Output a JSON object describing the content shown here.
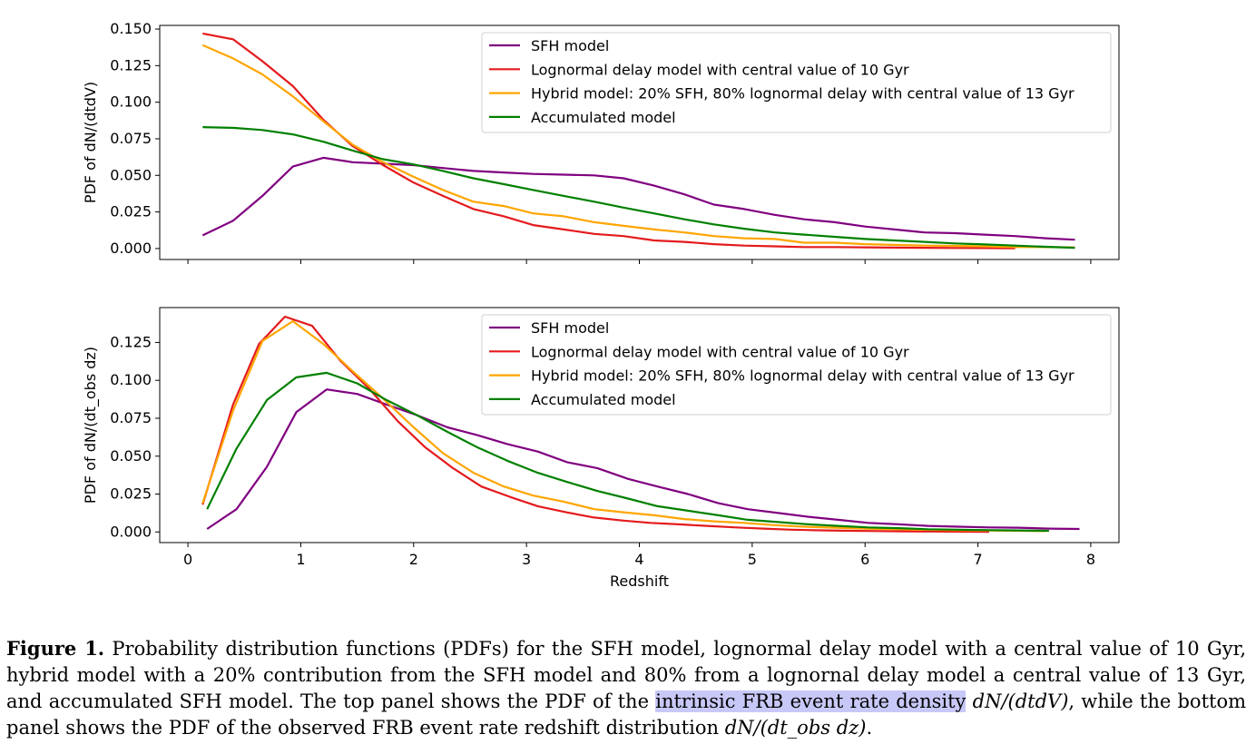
{
  "chart_data": [
    {
      "type": "line",
      "xlabel": "",
      "ylabel": "PDF of dN/(dtdV)",
      "xlim": [
        -0.25,
        8.25
      ],
      "ylim": [
        -0.0075,
        0.1525
      ],
      "xticks": [
        "0",
        "1",
        "2",
        "3",
        "4",
        "5",
        "6",
        "7",
        "8"
      ],
      "show_xtick_labels": false,
      "yticks": [
        "0.000",
        "0.025",
        "0.050",
        "0.075",
        "0.100",
        "0.125",
        "0.150"
      ],
      "legend": "top-right",
      "grid": false,
      "series": [
        {
          "name": "SFH model",
          "color": "#800080",
          "x": [
            0.13,
            0.4,
            0.66,
            0.93,
            1.2,
            1.46,
            1.73,
            2.0,
            2.26,
            2.53,
            2.8,
            3.06,
            3.33,
            3.6,
            3.86,
            4.13,
            4.4,
            4.66,
            4.93,
            5.2,
            5.46,
            5.73,
            6.0,
            6.26,
            6.53,
            6.8,
            7.06,
            7.33,
            7.6,
            7.86
          ],
          "y": [
            0.009,
            0.019,
            0.036,
            0.056,
            0.062,
            0.059,
            0.058,
            0.057,
            0.055,
            0.053,
            0.052,
            0.051,
            0.0505,
            0.05,
            0.048,
            0.043,
            0.037,
            0.03,
            0.027,
            0.023,
            0.02,
            0.018,
            0.015,
            0.013,
            0.011,
            0.0105,
            0.0095,
            0.0085,
            0.007,
            0.006
          ]
        },
        {
          "name": "Lognormal delay model with central value of 10 Gyr",
          "color": "#e41a1c",
          "x": [
            0.13,
            0.4,
            0.66,
            0.93,
            1.2,
            1.46,
            1.73,
            2.0,
            2.26,
            2.53,
            2.8,
            3.06,
            3.33,
            3.6,
            3.86,
            4.13,
            4.4,
            4.66,
            4.93,
            5.2,
            5.46,
            5.73,
            6.0,
            6.26,
            6.53,
            6.8,
            7.06,
            7.33
          ],
          "y": [
            0.147,
            0.143,
            0.128,
            0.111,
            0.088,
            0.07,
            0.057,
            0.045,
            0.036,
            0.027,
            0.022,
            0.016,
            0.013,
            0.01,
            0.0085,
            0.0055,
            0.0045,
            0.003,
            0.002,
            0.0015,
            0.001,
            0.001,
            0.0008,
            0.0006,
            0.0005,
            0.0004,
            0.0003,
            0.0002
          ]
        },
        {
          "name": "Hybrid model: 20% SFH, 80% lognormal delay with central value of 13 Gyr",
          "color": "#ffa500",
          "x": [
            0.13,
            0.4,
            0.66,
            0.93,
            1.2,
            1.46,
            1.73,
            2.0,
            2.26,
            2.53,
            2.8,
            3.06,
            3.33,
            3.6,
            3.86,
            4.13,
            4.4,
            4.66,
            4.93,
            5.2,
            5.46,
            5.73,
            6.0,
            6.26,
            6.53,
            6.8,
            7.06,
            7.33,
            7.6,
            7.86
          ],
          "y": [
            0.139,
            0.13,
            0.119,
            0.104,
            0.087,
            0.071,
            0.059,
            0.049,
            0.04,
            0.032,
            0.029,
            0.024,
            0.022,
            0.018,
            0.0155,
            0.013,
            0.011,
            0.0085,
            0.007,
            0.0065,
            0.004,
            0.004,
            0.003,
            0.0025,
            0.002,
            0.0018,
            0.0015,
            0.001,
            0.001,
            0.0008
          ]
        },
        {
          "name": "Accumulated model",
          "color": "#008000",
          "x": [
            0.13,
            0.4,
            0.66,
            0.93,
            1.2,
            1.46,
            1.73,
            2.0,
            2.26,
            2.53,
            2.8,
            3.06,
            3.33,
            3.6,
            3.86,
            4.13,
            4.4,
            4.66,
            4.93,
            5.2,
            5.46,
            5.73,
            6.0,
            6.26,
            6.53,
            6.8,
            7.06,
            7.33,
            7.6,
            7.86
          ],
          "y": [
            0.083,
            0.0825,
            0.081,
            0.078,
            0.073,
            0.067,
            0.061,
            0.0575,
            0.053,
            0.048,
            0.044,
            0.04,
            0.036,
            0.032,
            0.028,
            0.024,
            0.02,
            0.0165,
            0.0135,
            0.011,
            0.0095,
            0.008,
            0.0065,
            0.0055,
            0.0045,
            0.0035,
            0.0028,
            0.002,
            0.0012,
            0.0005
          ]
        }
      ]
    },
    {
      "type": "line",
      "xlabel": "Redshift",
      "ylabel": "PDF of dN/(dt_obs dz)",
      "xlim": [
        -0.25,
        8.25
      ],
      "ylim": [
        -0.007,
        0.148
      ],
      "xticks": [
        "0",
        "1",
        "2",
        "3",
        "4",
        "5",
        "6",
        "7",
        "8"
      ],
      "show_xtick_labels": true,
      "yticks": [
        "0.000",
        "0.025",
        "0.050",
        "0.075",
        "0.100",
        "0.125"
      ],
      "legend": "top-right",
      "grid": false,
      "series": [
        {
          "name": "SFH model",
          "color": "#800080",
          "x": [
            0.17,
            0.43,
            0.7,
            0.96,
            1.23,
            1.5,
            1.76,
            2.03,
            2.3,
            2.56,
            2.83,
            3.1,
            3.36,
            3.63,
            3.9,
            4.16,
            4.43,
            4.7,
            4.96,
            5.23,
            5.5,
            5.76,
            6.03,
            6.3,
            6.56,
            6.83,
            7.1,
            7.36,
            7.63,
            7.9
          ],
          "y": [
            0.002,
            0.015,
            0.043,
            0.079,
            0.094,
            0.091,
            0.084,
            0.077,
            0.069,
            0.064,
            0.058,
            0.053,
            0.046,
            0.042,
            0.035,
            0.03,
            0.025,
            0.019,
            0.015,
            0.0125,
            0.01,
            0.008,
            0.006,
            0.005,
            0.004,
            0.0035,
            0.003,
            0.0028,
            0.0022,
            0.002
          ]
        },
        {
          "name": "Lognormal delay model with central value of 10 Gyr",
          "color": "#e41a1c",
          "x": [
            0.13,
            0.4,
            0.63,
            0.86,
            1.1,
            1.35,
            1.6,
            1.86,
            2.1,
            2.35,
            2.6,
            2.86,
            3.1,
            3.35,
            3.6,
            3.86,
            4.1,
            4.35,
            4.6,
            4.86,
            5.1,
            5.35,
            5.6,
            5.86,
            6.1,
            6.35,
            6.6,
            6.86,
            7.1
          ],
          "y": [
            0.018,
            0.084,
            0.124,
            0.142,
            0.136,
            0.113,
            0.095,
            0.073,
            0.056,
            0.042,
            0.03,
            0.023,
            0.017,
            0.013,
            0.0095,
            0.0075,
            0.006,
            0.005,
            0.004,
            0.003,
            0.0022,
            0.0015,
            0.0011,
            0.0008,
            0.0006,
            0.0004,
            0.0003,
            0.0002,
            0.0001
          ]
        },
        {
          "name": "Hybrid model: 20% SFH, 80% lognormal delay with central value of 13 Gyr",
          "color": "#ffa500",
          "x": [
            0.13,
            0.4,
            0.66,
            0.93,
            1.2,
            1.46,
            1.73,
            2.0,
            2.26,
            2.53,
            2.8,
            3.06,
            3.33,
            3.6,
            3.86,
            4.13,
            4.4,
            4.66,
            4.93,
            5.2,
            5.46,
            5.73,
            6.0,
            6.26,
            6.53,
            6.8,
            7.06,
            7.33,
            7.6
          ],
          "y": [
            0.019,
            0.08,
            0.126,
            0.139,
            0.124,
            0.106,
            0.088,
            0.069,
            0.052,
            0.039,
            0.03,
            0.024,
            0.02,
            0.015,
            0.013,
            0.011,
            0.0085,
            0.007,
            0.006,
            0.0045,
            0.0035,
            0.0028,
            0.0022,
            0.0018,
            0.0015,
            0.0012,
            0.001,
            0.0008,
            0.0006
          ]
        },
        {
          "name": "Accumulated model",
          "color": "#008000",
          "x": [
            0.17,
            0.43,
            0.7,
            0.96,
            1.23,
            1.5,
            1.76,
            2.03,
            2.3,
            2.56,
            2.83,
            3.1,
            3.36,
            3.63,
            3.9,
            4.16,
            4.43,
            4.7,
            4.96,
            5.23,
            5.5,
            5.76,
            6.03,
            6.3,
            6.56,
            6.83,
            7.1,
            7.36,
            7.63
          ],
          "y": [
            0.015,
            0.055,
            0.087,
            0.102,
            0.105,
            0.098,
            0.087,
            0.077,
            0.066,
            0.056,
            0.047,
            0.039,
            0.033,
            0.027,
            0.022,
            0.017,
            0.014,
            0.011,
            0.008,
            0.0065,
            0.005,
            0.004,
            0.003,
            0.0025,
            0.0018,
            0.0015,
            0.0012,
            0.001,
            0.0008
          ]
        }
      ]
    }
  ],
  "caption": {
    "label": "Figure 1.",
    "text_before_highlight": " Probability distribution functions (PDFs) for the SFH model, lognormal delay model with a central value of 10 Gyr, hybrid model with a 20% contribution from the SFH model and 80% from a lognornal delay model a central value of 13 Gyr, and accumulated SFH model. The top panel shows the PDF of the ",
    "highlight": "intrinsic FRB event rate density",
    "math_1": "dN/(dtdV)",
    "text_middle": ", while the bottom panel shows the PDF of the observed FRB event rate redshift distribution ",
    "math_2": "dN/(dt_obs dz)",
    "text_end": "."
  }
}
